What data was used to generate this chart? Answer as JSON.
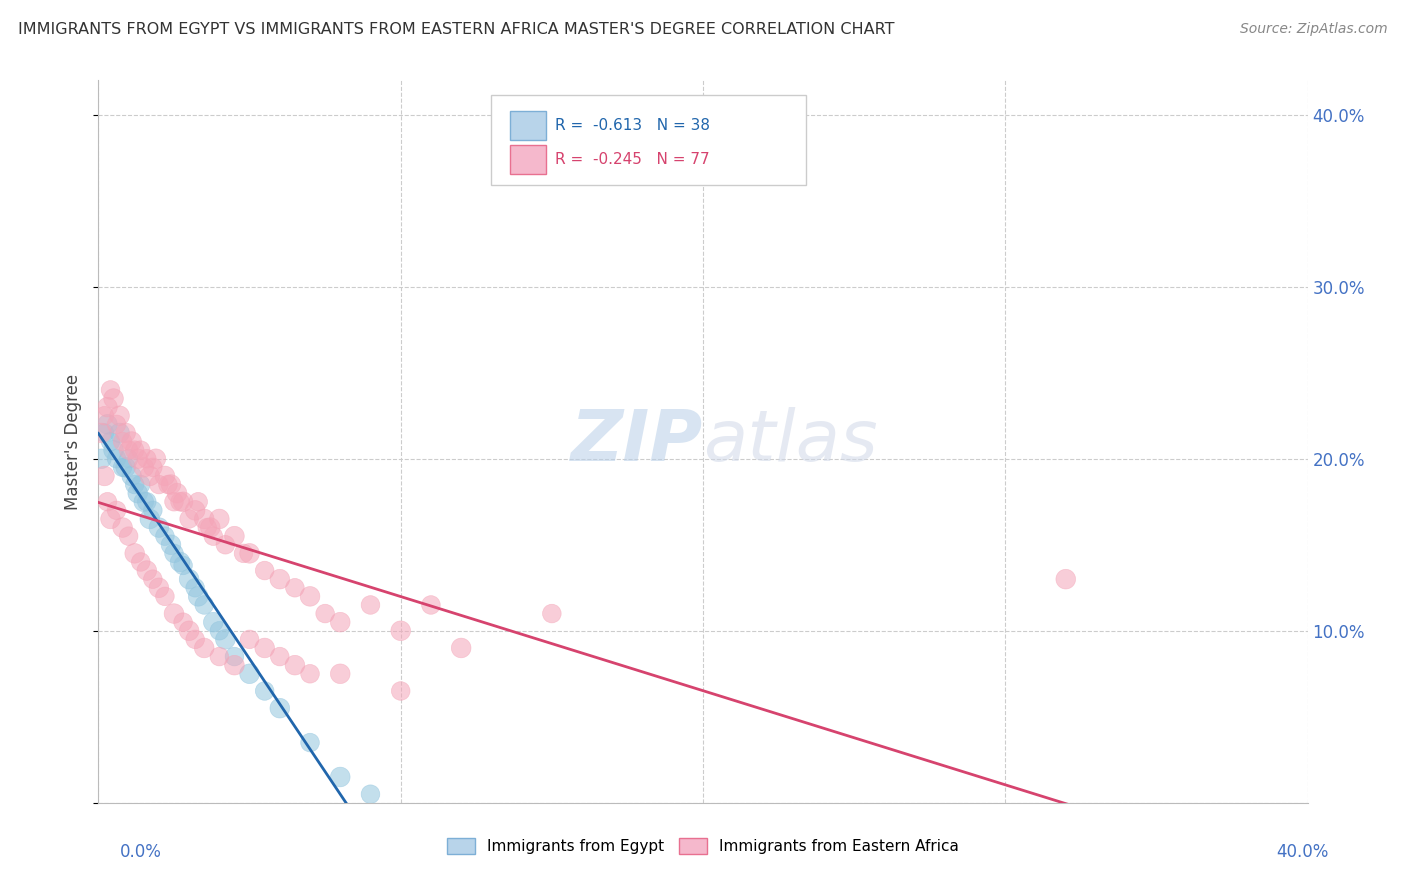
{
  "title": "IMMIGRANTS FROM EGYPT VS IMMIGRANTS FROM EASTERN AFRICA MASTER'S DEGREE CORRELATION CHART",
  "source": "Source: ZipAtlas.com",
  "ylabel": "Master's Degree",
  "watermark": "ZIPatlas",
  "egypt": {
    "label": "Immigrants from Egypt",
    "color": "#92c5de",
    "line_color": "#2166ac",
    "R": -0.613,
    "N": 38,
    "x": [
      0.001,
      0.002,
      0.003,
      0.004,
      0.005,
      0.006,
      0.007,
      0.008,
      0.009,
      0.01,
      0.011,
      0.012,
      0.013,
      0.014,
      0.015,
      0.016,
      0.017,
      0.018,
      0.02,
      0.022,
      0.024,
      0.025,
      0.027,
      0.028,
      0.03,
      0.032,
      0.033,
      0.035,
      0.038,
      0.04,
      0.042,
      0.045,
      0.05,
      0.055,
      0.06,
      0.07,
      0.08,
      0.09
    ],
    "y": [
      0.2,
      0.215,
      0.22,
      0.21,
      0.205,
      0.2,
      0.215,
      0.195,
      0.195,
      0.2,
      0.19,
      0.185,
      0.18,
      0.185,
      0.175,
      0.175,
      0.165,
      0.17,
      0.16,
      0.155,
      0.15,
      0.145,
      0.14,
      0.138,
      0.13,
      0.125,
      0.12,
      0.115,
      0.105,
      0.1,
      0.095,
      0.085,
      0.075,
      0.065,
      0.055,
      0.035,
      0.015,
      0.005
    ],
    "sizes": [
      200,
      180,
      200,
      180,
      200,
      180,
      200,
      180,
      200,
      180,
      200,
      180,
      200,
      180,
      200,
      180,
      200,
      180,
      200,
      180,
      200,
      180,
      200,
      180,
      200,
      180,
      200,
      180,
      200,
      180,
      200,
      180,
      200,
      180,
      200,
      180,
      200,
      180
    ]
  },
  "eafrica": {
    "label": "Immigrants from Eastern Africa",
    "color": "#f4a5b8",
    "line_color": "#d6436e",
    "R": -0.245,
    "N": 77,
    "x": [
      0.001,
      0.002,
      0.003,
      0.004,
      0.005,
      0.006,
      0.007,
      0.008,
      0.009,
      0.01,
      0.011,
      0.012,
      0.013,
      0.014,
      0.015,
      0.016,
      0.017,
      0.018,
      0.019,
      0.02,
      0.022,
      0.023,
      0.024,
      0.025,
      0.026,
      0.027,
      0.028,
      0.03,
      0.032,
      0.033,
      0.035,
      0.036,
      0.037,
      0.038,
      0.04,
      0.042,
      0.045,
      0.048,
      0.05,
      0.055,
      0.06,
      0.065,
      0.07,
      0.075,
      0.08,
      0.09,
      0.1,
      0.11,
      0.12,
      0.15,
      0.002,
      0.003,
      0.004,
      0.006,
      0.008,
      0.01,
      0.012,
      0.014,
      0.016,
      0.018,
      0.02,
      0.022,
      0.025,
      0.028,
      0.03,
      0.032,
      0.035,
      0.04,
      0.045,
      0.05,
      0.055,
      0.06,
      0.065,
      0.07,
      0.08,
      0.1,
      0.32
    ],
    "y": [
      0.215,
      0.225,
      0.23,
      0.24,
      0.235,
      0.22,
      0.225,
      0.21,
      0.215,
      0.205,
      0.21,
      0.205,
      0.2,
      0.205,
      0.195,
      0.2,
      0.19,
      0.195,
      0.2,
      0.185,
      0.19,
      0.185,
      0.185,
      0.175,
      0.18,
      0.175,
      0.175,
      0.165,
      0.17,
      0.175,
      0.165,
      0.16,
      0.16,
      0.155,
      0.165,
      0.15,
      0.155,
      0.145,
      0.145,
      0.135,
      0.13,
      0.125,
      0.12,
      0.11,
      0.105,
      0.115,
      0.1,
      0.115,
      0.09,
      0.11,
      0.19,
      0.175,
      0.165,
      0.17,
      0.16,
      0.155,
      0.145,
      0.14,
      0.135,
      0.13,
      0.125,
      0.12,
      0.11,
      0.105,
      0.1,
      0.095,
      0.09,
      0.085,
      0.08,
      0.095,
      0.09,
      0.085,
      0.08,
      0.075,
      0.075,
      0.065,
      0.13
    ],
    "sizes": [
      200,
      180,
      200,
      180,
      200,
      180,
      200,
      180,
      200,
      180,
      200,
      180,
      200,
      180,
      200,
      180,
      200,
      180,
      200,
      180,
      200,
      180,
      200,
      180,
      200,
      180,
      200,
      180,
      200,
      180,
      200,
      180,
      200,
      180,
      200,
      180,
      200,
      180,
      200,
      180,
      200,
      180,
      200,
      180,
      200,
      180,
      200,
      180,
      200,
      180,
      200,
      180,
      200,
      180,
      200,
      180,
      200,
      180,
      200,
      180,
      200,
      180,
      200,
      180,
      200,
      180,
      200,
      180,
      200,
      180,
      200,
      180,
      200,
      180,
      200,
      180,
      200
    ]
  },
  "xlim": [
    0.0,
    0.4
  ],
  "ylim": [
    0.0,
    0.42
  ],
  "yticks": [
    0.0,
    0.1,
    0.2,
    0.3,
    0.4
  ],
  "ytick_labels": [
    "",
    "10.0%",
    "20.0%",
    "30.0%",
    "40.0%"
  ],
  "xtick_labels_bottom": [
    "0.0%",
    "40.0%"
  ],
  "grid_color": "#cccccc",
  "background_color": "#ffffff"
}
